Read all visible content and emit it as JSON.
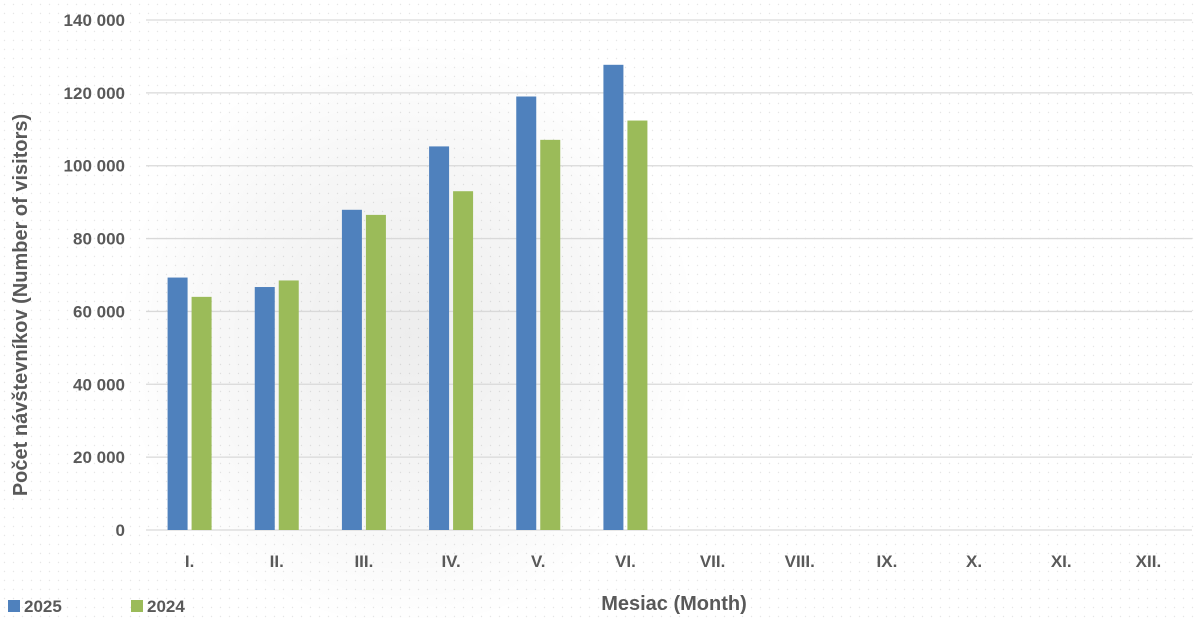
{
  "chart_data": {
    "type": "bar",
    "title": "",
    "xlabel": "Mesiac (Month)",
    "ylabel": "Počet návštevníkov (Number of visitors)",
    "ylim": [
      0,
      140000
    ],
    "ytick_values": [
      0,
      20000,
      40000,
      60000,
      80000,
      100000,
      120000,
      140000
    ],
    "ytick_labels": [
      "0",
      "20 000",
      "40 000",
      "60 000",
      "80 000",
      "100 000",
      "120 000",
      "140 000"
    ],
    "categories": [
      "I.",
      "II.",
      "III.",
      "IV.",
      "V.",
      "VI.",
      "VII.",
      "VIII.",
      "IX.",
      "X.",
      "XI.",
      "XII."
    ],
    "series": [
      {
        "name": "2025",
        "color": "#4f81bd",
        "values": [
          69300,
          66700,
          87900,
          105300,
          119000,
          127700,
          null,
          null,
          null,
          null,
          null,
          null
        ]
      },
      {
        "name": "2024",
        "color": "#9bbb59",
        "values": [
          64000,
          68500,
          86500,
          93000,
          107100,
          112400,
          null,
          null,
          null,
          null,
          null,
          null
        ]
      }
    ],
    "grid": true,
    "legend_position": "bottom-left"
  }
}
